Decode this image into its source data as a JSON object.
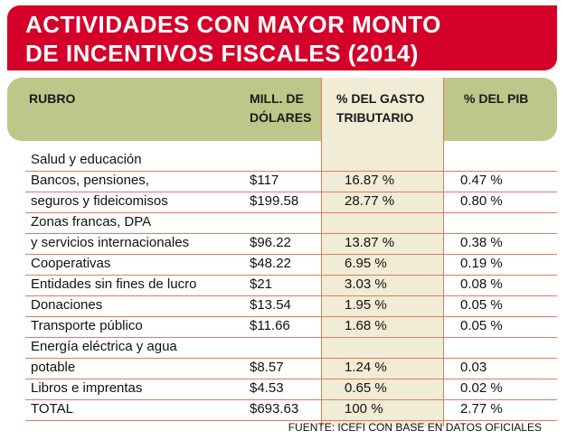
{
  "title_lines": [
    "ACTIVIDADES CON MAYOR MONTO",
    "DE INCENTIVOS FISCALES (2014)"
  ],
  "headers": {
    "rubro": "RUBRO",
    "mill_line1": "MILL. DE",
    "mill_line2": "DÓLARES",
    "gasto_line1": "% DEL GASTO",
    "gasto_line2": "TRIBUTARIO",
    "pib": "% DEL PIB"
  },
  "rows": [
    [
      "Salud y educación",
      "",
      "",
      ""
    ],
    [
      "Bancos, pensiones,",
      "$117",
      "16.87 %",
      "0.47 %"
    ],
    [
      "seguros y fideicomisos",
      "$199.58",
      "28.77 %",
      "0.80 %"
    ],
    [
      "Zonas francas, DPA",
      "",
      "",
      ""
    ],
    [
      "y servicios internacionales",
      "$96.22",
      "13.87 %",
      "0.38 %"
    ],
    [
      "Cooperativas",
      "$48.22",
      "6.95 %",
      "0.19 %"
    ],
    [
      "Entidades sin fines de lucro",
      "$21",
      "3.03 %",
      "0.08 %"
    ],
    [
      "Donaciones",
      "$13.54",
      "1.95 %",
      "0.05 %"
    ],
    [
      "Transporte público",
      "$11.66",
      "1.68 %",
      "0.05 %"
    ],
    [
      "Energía eléctrica y agua",
      "",
      "",
      ""
    ],
    [
      "potable",
      "$8.57",
      "1.24 %",
      "0.03"
    ],
    [
      "Libros e imprentas",
      "$4.53",
      "0.65 %",
      "0.02 %"
    ],
    [
      "TOTAL",
      "$693.63",
      "100 %",
      "2.77 %"
    ]
  ],
  "source": "FUENTE: ICEFI CON BASE EN DATOS OFICIALES",
  "colors": {
    "title_bg": "#d4002a",
    "header_bg": "#bfc68a",
    "highlight_col": "#f1ecd5",
    "rule": "#e07a5f"
  },
  "chart_data": {
    "type": "table",
    "title": "ACTIVIDADES CON MAYOR MONTO DE INCENTIVOS FISCALES (2014)",
    "columns": [
      "RUBRO",
      "MILL. DE DÓLARES",
      "% DEL GASTO TRIBUTARIO",
      "% DEL PIB"
    ],
    "rows": [
      [
        "Salud y educación",
        "",
        "",
        ""
      ],
      [
        "Bancos, pensiones,",
        "$117",
        "16.87 %",
        "0.47 %"
      ],
      [
        "seguros y fideicomisos",
        "$199.58",
        "28.77 %",
        "0.80 %"
      ],
      [
        "Zonas francas, DPA",
        "",
        "",
        ""
      ],
      [
        "y servicios internacionales",
        "$96.22",
        "13.87 %",
        "0.38 %"
      ],
      [
        "Cooperativas",
        "$48.22",
        "6.95 %",
        "0.19 %"
      ],
      [
        "Entidades sin fines de lucro",
        "$21",
        "3.03 %",
        "0.08 %"
      ],
      [
        "Donaciones",
        "$13.54",
        "1.95 %",
        "0.05 %"
      ],
      [
        "Transporte público",
        "$11.66",
        "1.68 %",
        "0.05 %"
      ],
      [
        "Energía eléctrica y agua",
        "",
        "",
        ""
      ],
      [
        "potable",
        "$8.57",
        "1.24 %",
        "0.03"
      ],
      [
        "Libros e imprentas",
        "$4.53",
        "0.65 %",
        "0.02 %"
      ],
      [
        "TOTAL",
        "$693.63",
        "100 %",
        "2.77 %"
      ]
    ]
  }
}
